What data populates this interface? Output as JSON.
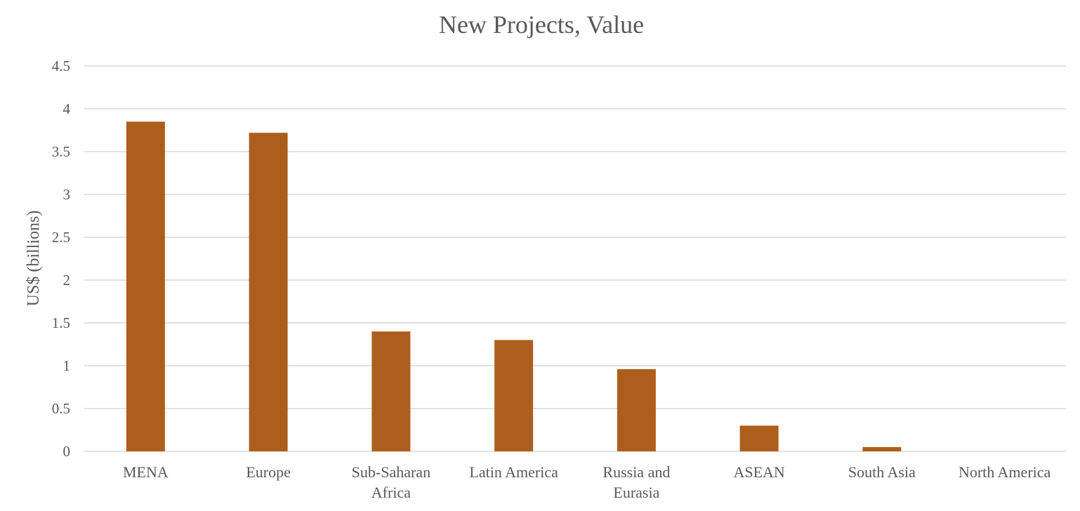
{
  "chart_data": {
    "type": "bar",
    "title": "New Projects, Value",
    "xlabel": "",
    "ylabel": "US$ (billions)",
    "ylim": [
      0,
      4.5
    ],
    "yticks": [
      "0",
      "0.5",
      "1",
      "1.5",
      "2",
      "2.5",
      "3",
      "3.5",
      "4",
      "4.5"
    ],
    "categories": [
      [
        "MENA"
      ],
      [
        "Europe"
      ],
      [
        "Sub-Saharan",
        "Africa"
      ],
      [
        "Latin America"
      ],
      [
        "Russia and",
        "Eurasia"
      ],
      [
        "ASEAN"
      ],
      [
        "South Asia"
      ],
      [
        "North America"
      ]
    ],
    "series": [
      {
        "values": [
          3.85,
          3.72,
          1.4,
          1.3,
          0.96,
          0.3,
          0.05,
          0
        ]
      }
    ],
    "grid": true,
    "legend": "none",
    "bar_color": "#ae5e1c",
    "grid_color": "#d9d9d9",
    "text_color": "#595959"
  }
}
